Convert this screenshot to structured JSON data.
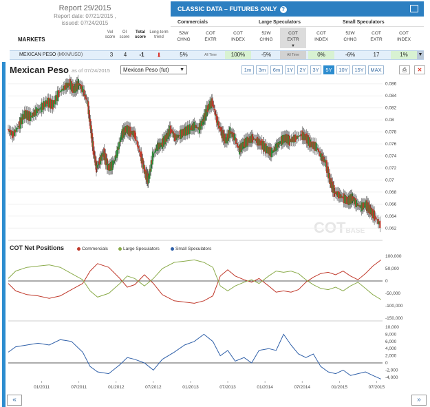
{
  "report": {
    "title": "Report 29/2015",
    "date_line": "Report date: 07/21/2015 ,",
    "issued_line": "issued: 07/24/2015"
  },
  "classic": {
    "title": "CLASSIC DATA – FUTURES ONLY",
    "info": "?"
  },
  "markets_label": "MARKETS",
  "columns": {
    "vol": [
      "Vol",
      "score"
    ],
    "oi": [
      "OI",
      "score"
    ],
    "total": [
      "Total",
      "score"
    ],
    "trend": [
      "Long-term",
      "trend"
    ]
  },
  "groups": [
    {
      "name": "Commercials",
      "subs": [
        [
          "52W",
          "CHNG"
        ],
        [
          "COT",
          "EXTR"
        ],
        [
          "COT",
          "INDEX"
        ]
      ]
    },
    {
      "name": "Large Speculators",
      "subs": [
        [
          "52W",
          "CHNG"
        ],
        [
          "COT",
          "EXTR"
        ],
        [
          "COT",
          "INDEX"
        ]
      ]
    },
    {
      "name": "Small Speculators",
      "subs": [
        [
          "52W",
          "CHNG"
        ],
        [
          "COT",
          "EXTR"
        ],
        [
          "COT",
          "INDEX"
        ]
      ]
    }
  ],
  "row": {
    "market": "MEXICAN PESO",
    "symbol": "(MXN/USD)",
    "vol": "3",
    "oi": "4",
    "total": "-1",
    "comm_chng": "5%",
    "comm_extr": "All Time",
    "comm_index": "100%",
    "large_chng": "-5%",
    "large_extr": "All Time",
    "large_index": "0%",
    "small_chng": "-6%",
    "small_extr": "17",
    "small_index": "1%"
  },
  "chart_header": {
    "title": "Mexican Peso",
    "asof": "as of 07/24/2015",
    "select_value": "Mexican Peso (fut)",
    "ranges": [
      "1m",
      "3m",
      "6m",
      "1Y",
      "2Y",
      "3Y",
      "5Y",
      "10Y",
      "15Y",
      "MAX"
    ],
    "active_range": "5Y"
  },
  "cot_section": {
    "title": "COT Net Positions",
    "legend": [
      "Commercials",
      "Large Speculators",
      "Small Speculators"
    ]
  },
  "watermark": {
    "main": "COT",
    "sub": "BASE"
  },
  "colors": {
    "accent": "#2c8ccf",
    "commercials": "#c0392b",
    "large_speculators": "#8aab4a",
    "small_speculators": "#2e5fa8",
    "up_candle": "#2e8b3a",
    "down_candle": "#c0392b"
  },
  "nav": {
    "prev": "«",
    "next": "»"
  },
  "chart_data": [
    {
      "type": "line",
      "title": "Mexican Peso",
      "series": [
        {
          "name": "Mexican Peso (fut)",
          "points": [
            [
              2010.55,
              0.0785
            ],
            [
              2010.62,
              0.0775
            ],
            [
              2010.7,
              0.079
            ],
            [
              2010.78,
              0.081
            ],
            [
              2010.86,
              0.0805
            ],
            [
              2010.94,
              0.0815
            ],
            [
              2011.0,
              0.082
            ],
            [
              2011.08,
              0.083
            ],
            [
              2011.16,
              0.0825
            ],
            [
              2011.24,
              0.0845
            ],
            [
              2011.32,
              0.0855
            ],
            [
              2011.38,
              0.086
            ],
            [
              2011.44,
              0.085
            ],
            [
              2011.5,
              0.086
            ],
            [
              2011.56,
              0.085
            ],
            [
              2011.62,
              0.083
            ],
            [
              2011.66,
              0.079
            ],
            [
              2011.7,
              0.075
            ],
            [
              2011.74,
              0.072
            ],
            [
              2011.78,
              0.073
            ],
            [
              2011.84,
              0.0745
            ],
            [
              2011.9,
              0.072
            ],
            [
              2011.96,
              0.0725
            ],
            [
              2012.02,
              0.0745
            ],
            [
              2012.08,
              0.0775
            ],
            [
              2012.14,
              0.0785
            ],
            [
              2012.2,
              0.078
            ],
            [
              2012.26,
              0.0775
            ],
            [
              2012.34,
              0.074
            ],
            [
              2012.4,
              0.071
            ],
            [
              2012.44,
              0.07
            ],
            [
              2012.5,
              0.074
            ],
            [
              2012.56,
              0.0755
            ],
            [
              2012.62,
              0.076
            ],
            [
              2012.68,
              0.077
            ],
            [
              2012.74,
              0.0785
            ],
            [
              2012.8,
              0.077
            ],
            [
              2012.86,
              0.0775
            ],
            [
              2012.92,
              0.078
            ],
            [
              2013.0,
              0.0785
            ],
            [
              2013.06,
              0.079
            ],
            [
              2013.12,
              0.0785
            ],
            [
              2013.18,
              0.08
            ],
            [
              2013.24,
              0.082
            ],
            [
              2013.3,
              0.083
            ],
            [
              2013.36,
              0.08
            ],
            [
              2013.42,
              0.078
            ],
            [
              2013.48,
              0.0765
            ],
            [
              2013.54,
              0.078
            ],
            [
              2013.6,
              0.077
            ],
            [
              2013.66,
              0.075
            ],
            [
              2013.72,
              0.076
            ],
            [
              2013.78,
              0.0765
            ],
            [
              2013.84,
              0.077
            ],
            [
              2013.9,
              0.0765
            ],
            [
              2013.96,
              0.076
            ],
            [
              2014.04,
              0.075
            ],
            [
              2014.1,
              0.0745
            ],
            [
              2014.16,
              0.0755
            ],
            [
              2014.22,
              0.0765
            ],
            [
              2014.28,
              0.077
            ],
            [
              2014.34,
              0.0765
            ],
            [
              2014.42,
              0.077
            ],
            [
              2014.5,
              0.0775
            ],
            [
              2014.56,
              0.077
            ],
            [
              2014.62,
              0.076
            ],
            [
              2014.7,
              0.0755
            ],
            [
              2014.76,
              0.074
            ],
            [
              2014.82,
              0.073
            ],
            [
              2014.88,
              0.07
            ],
            [
              2014.94,
              0.068
            ],
            [
              2015.0,
              0.0675
            ],
            [
              2015.06,
              0.067
            ],
            [
              2015.12,
              0.0665
            ],
            [
              2015.18,
              0.067
            ],
            [
              2015.24,
              0.066
            ],
            [
              2015.3,
              0.0655
            ],
            [
              2015.36,
              0.066
            ],
            [
              2015.42,
              0.065
            ],
            [
              2015.48,
              0.064
            ],
            [
              2015.56,
              0.0625
            ]
          ]
        }
      ],
      "ylim": [
        0.061,
        0.087
      ],
      "yticks": [
        "0.086",
        "0.084",
        "0.082",
        "0.08",
        "0.078",
        "0.076",
        "0.074",
        "0.072",
        "0.07",
        "0.068",
        "0.066",
        "0.064",
        "0.062"
      ]
    },
    {
      "type": "line",
      "title": "COT Net Positions",
      "series": [
        {
          "name": "Commercials",
          "points": [
            [
              2010.55,
              -10000
            ],
            [
              2010.65,
              -40000
            ],
            [
              2010.8,
              -55000
            ],
            [
              2010.95,
              -60000
            ],
            [
              2011.1,
              -70000
            ],
            [
              2011.25,
              -60000
            ],
            [
              2011.4,
              -35000
            ],
            [
              2011.55,
              -10000
            ],
            [
              2011.65,
              40000
            ],
            [
              2011.75,
              70000
            ],
            [
              2011.9,
              55000
            ],
            [
              2012.05,
              10000
            ],
            [
              2012.15,
              -25000
            ],
            [
              2012.25,
              -15000
            ],
            [
              2012.38,
              25000
            ],
            [
              2012.5,
              -10000
            ],
            [
              2012.62,
              -55000
            ],
            [
              2012.78,
              -80000
            ],
            [
              2012.92,
              -85000
            ],
            [
              2013.05,
              -90000
            ],
            [
              2013.18,
              -80000
            ],
            [
              2013.3,
              -60000
            ],
            [
              2013.4,
              20000
            ],
            [
              2013.5,
              45000
            ],
            [
              2013.6,
              20000
            ],
            [
              2013.72,
              5000
            ],
            [
              2013.82,
              -5000
            ],
            [
              2013.92,
              10000
            ],
            [
              2014.05,
              -20000
            ],
            [
              2014.15,
              -45000
            ],
            [
              2014.25,
              -40000
            ],
            [
              2014.35,
              -45000
            ],
            [
              2014.45,
              -35000
            ],
            [
              2014.55,
              -5000
            ],
            [
              2014.65,
              15000
            ],
            [
              2014.75,
              30000
            ],
            [
              2014.85,
              35000
            ],
            [
              2014.95,
              25000
            ],
            [
              2015.05,
              40000
            ],
            [
              2015.15,
              20000
            ],
            [
              2015.25,
              5000
            ],
            [
              2015.35,
              30000
            ],
            [
              2015.45,
              60000
            ],
            [
              2015.56,
              85000
            ]
          ]
        },
        {
          "name": "Large Speculators",
          "points": [
            [
              2010.55,
              10000
            ],
            [
              2010.65,
              40000
            ],
            [
              2010.8,
              55000
            ],
            [
              2010.95,
              60000
            ],
            [
              2011.1,
              65000
            ],
            [
              2011.25,
              55000
            ],
            [
              2011.4,
              30000
            ],
            [
              2011.55,
              5000
            ],
            [
              2011.65,
              -40000
            ],
            [
              2011.75,
              -65000
            ],
            [
              2011.9,
              -50000
            ],
            [
              2012.05,
              -10000
            ],
            [
              2012.15,
              20000
            ],
            [
              2012.25,
              10000
            ],
            [
              2012.38,
              -20000
            ],
            [
              2012.5,
              10000
            ],
            [
              2012.62,
              50000
            ],
            [
              2012.78,
              75000
            ],
            [
              2012.92,
              80000
            ],
            [
              2013.05,
              85000
            ],
            [
              2013.18,
              75000
            ],
            [
              2013.3,
              55000
            ],
            [
              2013.4,
              -20000
            ],
            [
              2013.5,
              -40000
            ],
            [
              2013.6,
              -20000
            ],
            [
              2013.72,
              -5000
            ],
            [
              2013.82,
              5000
            ],
            [
              2013.92,
              -10000
            ],
            [
              2014.05,
              20000
            ],
            [
              2014.15,
              40000
            ],
            [
              2014.25,
              35000
            ],
            [
              2014.35,
              40000
            ],
            [
              2014.45,
              30000
            ],
            [
              2014.55,
              5000
            ],
            [
              2014.65,
              -15000
            ],
            [
              2014.75,
              -30000
            ],
            [
              2014.85,
              -35000
            ],
            [
              2014.95,
              -25000
            ],
            [
              2015.05,
              -40000
            ],
            [
              2015.15,
              -20000
            ],
            [
              2015.25,
              -5000
            ],
            [
              2015.35,
              -30000
            ],
            [
              2015.45,
              -55000
            ],
            [
              2015.56,
              -75000
            ]
          ]
        },
        {
          "name": "Small Speculators",
          "points": [
            [
              2010.55,
              3000
            ],
            [
              2010.65,
              4500
            ],
            [
              2010.8,
              5000
            ],
            [
              2010.95,
              5500
            ],
            [
              2011.1,
              5000
            ],
            [
              2011.25,
              6500
            ],
            [
              2011.4,
              6000
            ],
            [
              2011.55,
              3000
            ],
            [
              2011.65,
              -1000
            ],
            [
              2011.75,
              -2500
            ],
            [
              2011.9,
              -3000
            ],
            [
              2012.05,
              -500
            ],
            [
              2012.15,
              1500
            ],
            [
              2012.25,
              1000
            ],
            [
              2012.38,
              0
            ],
            [
              2012.5,
              -2000
            ],
            [
              2012.62,
              1000
            ],
            [
              2012.78,
              3000
            ],
            [
              2012.92,
              5000
            ],
            [
              2013.05,
              6000
            ],
            [
              2013.18,
              8000
            ],
            [
              2013.3,
              6000
            ],
            [
              2013.4,
              2000
            ],
            [
              2013.5,
              3500
            ],
            [
              2013.6,
              500
            ],
            [
              2013.72,
              1500
            ],
            [
              2013.82,
              0
            ],
            [
              2013.92,
              3500
            ],
            [
              2014.05,
              4000
            ],
            [
              2014.15,
              3500
            ],
            [
              2014.25,
              8000
            ],
            [
              2014.35,
              5000
            ],
            [
              2014.45,
              2500
            ],
            [
              2014.55,
              1500
            ],
            [
              2014.65,
              2500
            ],
            [
              2014.75,
              -1000
            ],
            [
              2014.85,
              -2500
            ],
            [
              2014.95,
              -3000
            ],
            [
              2015.05,
              -2000
            ],
            [
              2015.15,
              -3500
            ],
            [
              2015.25,
              -3000
            ],
            [
              2015.35,
              -2500
            ],
            [
              2015.45,
              -3500
            ],
            [
              2015.56,
              -4500
            ]
          ]
        }
      ],
      "y1ticks": [
        "100,000",
        "50,000",
        "0",
        "-50,000",
        "-100,000",
        "-150,000"
      ],
      "y2ticks": [
        "10,000",
        "8,000",
        "6,000",
        "4,000",
        "2,000",
        "0",
        "-2,000",
        "-4,000"
      ],
      "xticks": [
        "01/2011",
        "07/2011",
        "01/2012",
        "07/2012",
        "01/2013",
        "07/2013",
        "01/2014",
        "07/2014",
        "01/2015",
        "07/2015"
      ]
    }
  ]
}
